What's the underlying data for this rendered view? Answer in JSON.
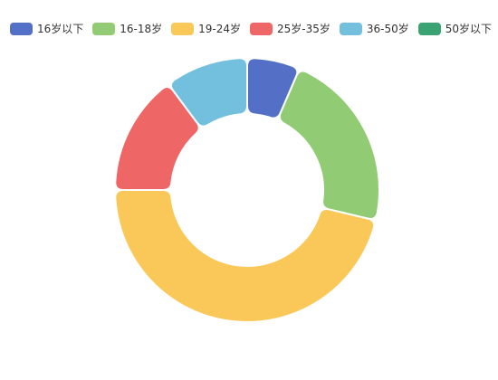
{
  "chart_data": {
    "type": "pie",
    "variant": "donut",
    "title": "",
    "legend_position": "top-left",
    "categories": [
      "16岁以下",
      "16-18岁",
      "19-24岁",
      "25岁-35岁",
      "36-50岁",
      "50岁以下"
    ],
    "values": [
      7,
      24,
      50,
      16,
      11,
      0
    ],
    "colors": [
      "#5470c6",
      "#91cc75",
      "#fac858",
      "#ee6666",
      "#73c0de",
      "#3ba272"
    ]
  }
}
